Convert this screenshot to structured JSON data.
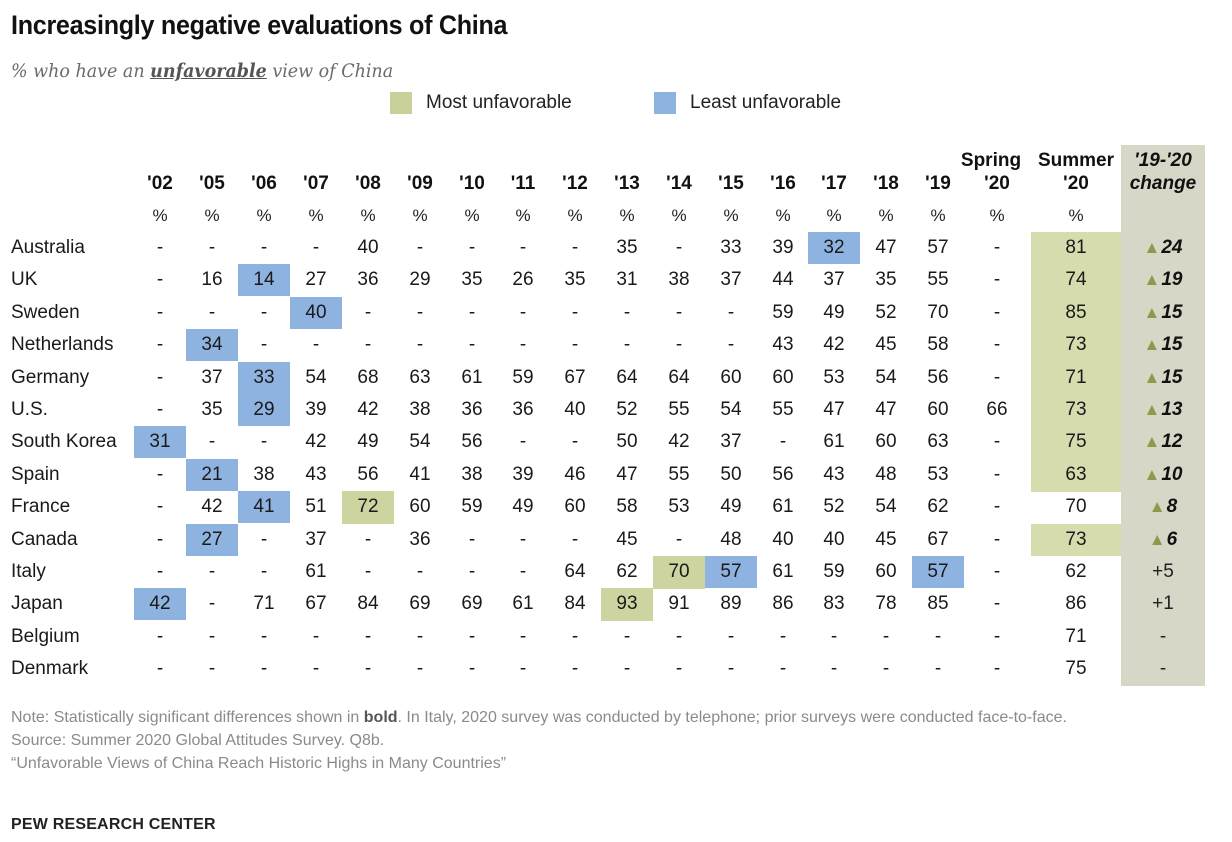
{
  "header": {
    "title": "Increasingly negative evaluations of China",
    "subtitle_pre": "% who have an ",
    "subtitle_emph": "unfavorable",
    "subtitle_post": " view of China"
  },
  "legend": [
    {
      "label": "Most unfavorable",
      "color": "#c9d09a"
    },
    {
      "label": "Least unfavorable",
      "color": "#8fb3e0"
    }
  ],
  "colors": {
    "most": "#cdd4a0",
    "least": "#8fb3e0",
    "summer_highlight": "#d6dcae",
    "change_column": "#d8d6c6",
    "triangle": "#8d9a4b"
  },
  "chart_data": {
    "type": "table",
    "title": "Increasingly negative evaluations of China",
    "subtitle": "% who have an unfavorable view of China",
    "unit_label": "%",
    "columns": [
      "'02",
      "'05",
      "'06",
      "'07",
      "'08",
      "'09",
      "'10",
      "'11",
      "'12",
      "'13",
      "'14",
      "'15",
      "'16",
      "'17",
      "'18",
      "'19",
      "Spring '20",
      "Summer '20"
    ],
    "column_headers": [
      {
        "line1": "",
        "line2": "'02"
      },
      {
        "line1": "",
        "line2": "'05"
      },
      {
        "line1": "",
        "line2": "'06"
      },
      {
        "line1": "",
        "line2": "'07"
      },
      {
        "line1": "",
        "line2": "'08"
      },
      {
        "line1": "",
        "line2": "'09"
      },
      {
        "line1": "",
        "line2": "'10"
      },
      {
        "line1": "",
        "line2": "'11"
      },
      {
        "line1": "",
        "line2": "'12"
      },
      {
        "line1": "",
        "line2": "'13"
      },
      {
        "line1": "",
        "line2": "'14"
      },
      {
        "line1": "",
        "line2": "'15"
      },
      {
        "line1": "",
        "line2": "'16"
      },
      {
        "line1": "",
        "line2": "'17"
      },
      {
        "line1": "",
        "line2": "'18"
      },
      {
        "line1": "",
        "line2": "'19"
      },
      {
        "line1": "Spring",
        "line2": "'20"
      },
      {
        "line1": "Summer",
        "line2": "'20"
      }
    ],
    "change_header": {
      "line1": "'19-'20",
      "line2": "change"
    },
    "rows": [
      {
        "country": "Australia",
        "values": [
          "-",
          "-",
          "-",
          "-",
          "40",
          "-",
          "-",
          "-",
          "-",
          "35",
          "-",
          "33",
          "39",
          "32",
          "47",
          "57",
          "-",
          "81"
        ],
        "most": [
          17
        ],
        "least": [
          13
        ],
        "change": "24",
        "change_sig": true
      },
      {
        "country": "UK",
        "values": [
          "-",
          "16",
          "14",
          "27",
          "36",
          "29",
          "35",
          "26",
          "35",
          "31",
          "38",
          "37",
          "44",
          "37",
          "35",
          "55",
          "-",
          "74"
        ],
        "most": [
          17
        ],
        "least": [
          2
        ],
        "change": "19",
        "change_sig": true
      },
      {
        "country": "Sweden",
        "values": [
          "-",
          "-",
          "-",
          "40",
          "-",
          "-",
          "-",
          "-",
          "-",
          "-",
          "-",
          "-",
          "59",
          "49",
          "52",
          "70",
          "-",
          "85"
        ],
        "most": [
          17
        ],
        "least": [
          3
        ],
        "change": "15",
        "change_sig": true
      },
      {
        "country": "Netherlands",
        "values": [
          "-",
          "34",
          "-",
          "-",
          "-",
          "-",
          "-",
          "-",
          "-",
          "-",
          "-",
          "-",
          "43",
          "42",
          "45",
          "58",
          "-",
          "73"
        ],
        "most": [
          17
        ],
        "least": [
          1
        ],
        "change": "15",
        "change_sig": true
      },
      {
        "country": "Germany",
        "values": [
          "-",
          "37",
          "33",
          "54",
          "68",
          "63",
          "61",
          "59",
          "67",
          "64",
          "64",
          "60",
          "60",
          "53",
          "54",
          "56",
          "-",
          "71"
        ],
        "most": [
          17
        ],
        "least": [
          2
        ],
        "change": "15",
        "change_sig": true
      },
      {
        "country": "U.S.",
        "values": [
          "-",
          "35",
          "29",
          "39",
          "42",
          "38",
          "36",
          "36",
          "40",
          "52",
          "55",
          "54",
          "55",
          "47",
          "47",
          "60",
          "66",
          "73"
        ],
        "most": [
          17
        ],
        "least": [
          2
        ],
        "change": "13",
        "change_sig": true
      },
      {
        "country": "South Korea",
        "values": [
          "31",
          "-",
          "-",
          "42",
          "49",
          "54",
          "56",
          "-",
          "-",
          "50",
          "42",
          "37",
          "-",
          "61",
          "60",
          "63",
          "-",
          "75"
        ],
        "most": [
          17
        ],
        "least": [
          0
        ],
        "change": "12",
        "change_sig": true
      },
      {
        "country": "Spain",
        "values": [
          "-",
          "21",
          "38",
          "43",
          "56",
          "41",
          "38",
          "39",
          "46",
          "47",
          "55",
          "50",
          "56",
          "43",
          "48",
          "53",
          "-",
          "63"
        ],
        "most": [
          17
        ],
        "least": [
          1
        ],
        "change": "10",
        "change_sig": true
      },
      {
        "country": "France",
        "values": [
          "-",
          "42",
          "41",
          "51",
          "72",
          "60",
          "59",
          "49",
          "60",
          "58",
          "53",
          "49",
          "61",
          "52",
          "54",
          "62",
          "-",
          "70"
        ],
        "most": [
          4
        ],
        "least": [
          2
        ],
        "change": "8",
        "change_sig": true
      },
      {
        "country": "Canada",
        "values": [
          "-",
          "27",
          "-",
          "37",
          "-",
          "36",
          "-",
          "-",
          "-",
          "45",
          "-",
          "48",
          "40",
          "40",
          "45",
          "67",
          "-",
          "73"
        ],
        "most": [
          17
        ],
        "least": [
          1
        ],
        "change": "6",
        "change_sig": true
      },
      {
        "country": "Italy",
        "values": [
          "-",
          "-",
          "-",
          "61",
          "-",
          "-",
          "-",
          "-",
          "64",
          "62",
          "70",
          "57",
          "61",
          "59",
          "60",
          "57",
          "-",
          "62"
        ],
        "most": [
          10
        ],
        "least": [
          11,
          15
        ],
        "change": "+5",
        "change_sig": false
      },
      {
        "country": "Japan",
        "values": [
          "42",
          "-",
          "71",
          "67",
          "84",
          "69",
          "69",
          "61",
          "84",
          "93",
          "91",
          "89",
          "86",
          "83",
          "78",
          "85",
          "-",
          "86"
        ],
        "most": [
          9
        ],
        "least": [
          0
        ],
        "change": "+1",
        "change_sig": false
      },
      {
        "country": "Belgium",
        "values": [
          "-",
          "-",
          "-",
          "-",
          "-",
          "-",
          "-",
          "-",
          "-",
          "-",
          "-",
          "-",
          "-",
          "-",
          "-",
          "-",
          "-",
          "71"
        ],
        "most": [],
        "least": [],
        "change": "-",
        "change_sig": false
      },
      {
        "country": "Denmark",
        "values": [
          "-",
          "-",
          "-",
          "-",
          "-",
          "-",
          "-",
          "-",
          "-",
          "-",
          "-",
          "-",
          "-",
          "-",
          "-",
          "-",
          "-",
          "75"
        ],
        "most": [],
        "least": [],
        "change": "-",
        "change_sig": false
      }
    ],
    "change_marker": "▲"
  },
  "footer": {
    "note_pre": "Note: Statistically significant differences shown in ",
    "note_bold": "bold",
    "note_post": ". In Italy, 2020 survey was conducted by telephone; prior surveys were conducted face-to-face.",
    "source": "Source: Summer 2020 Global Attitudes Survey. Q8b.",
    "report": "“Unfavorable Views of China Reach Historic Highs in Many Countries”",
    "org": "PEW RESEARCH CENTER"
  }
}
